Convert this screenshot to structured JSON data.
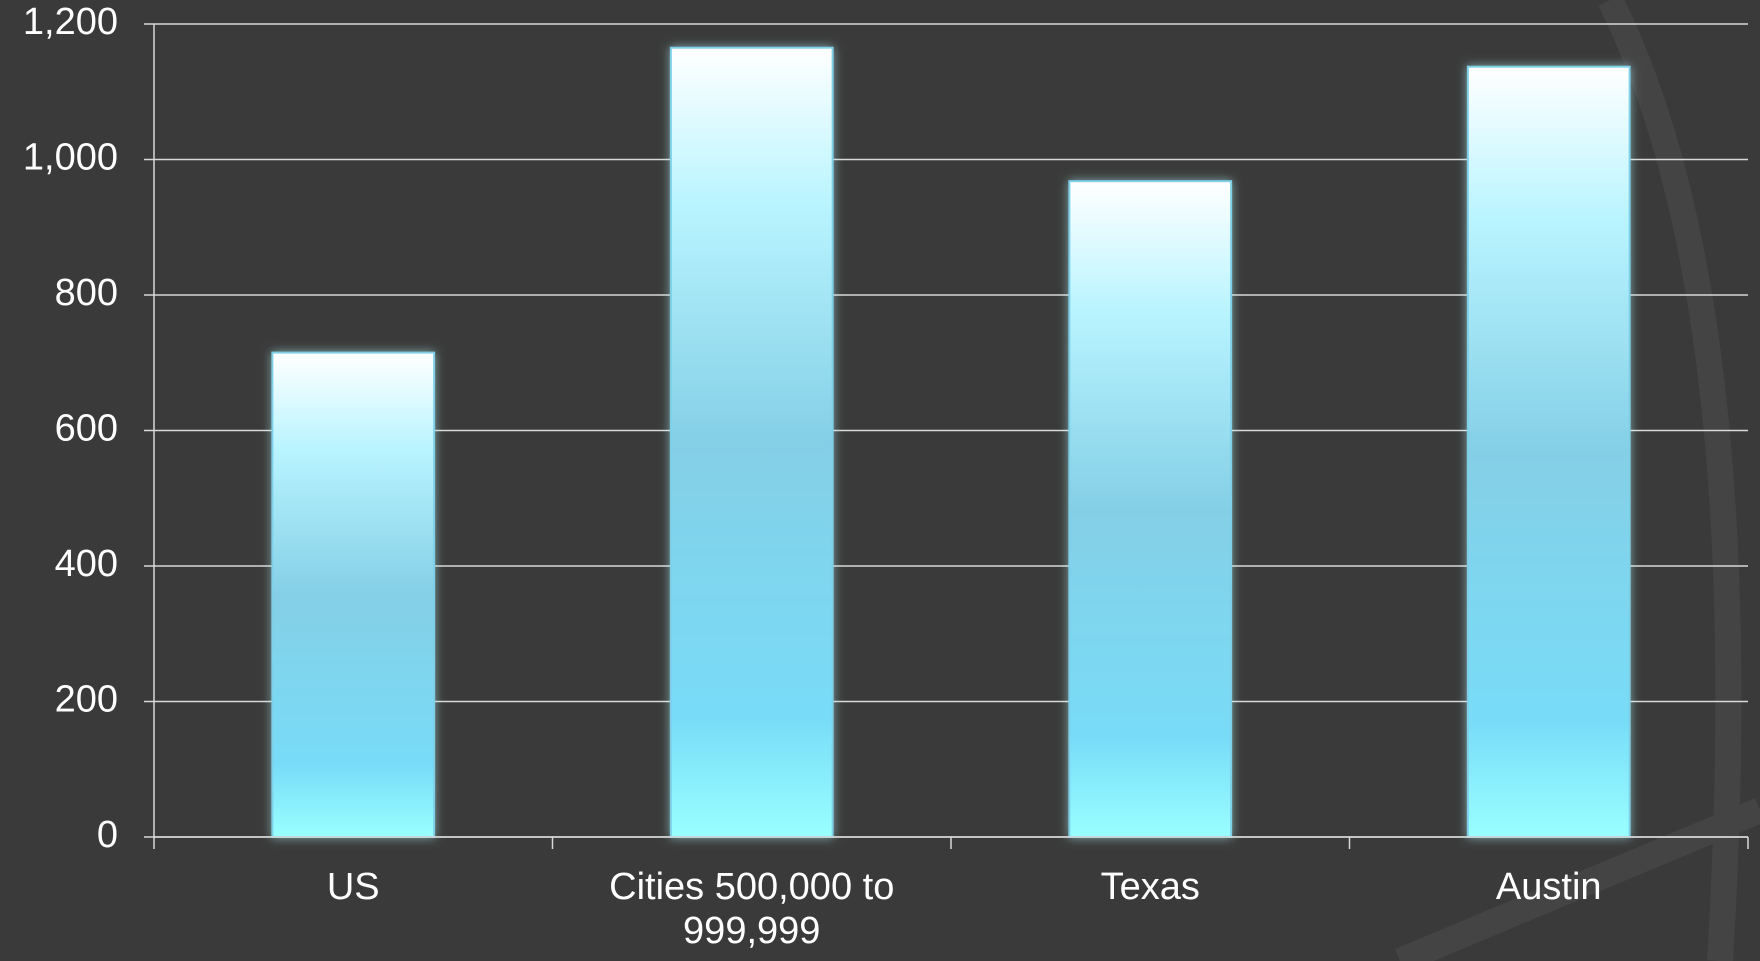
{
  "chart_data": {
    "type": "bar",
    "categories": [
      "US",
      "Cities 500,000 to 999,999",
      "Texas",
      "Austin"
    ],
    "values": [
      715,
      1165,
      968,
      1137
    ],
    "color": "#7ecfe8",
    "ylim": [
      0,
      1200
    ],
    "yticks": [
      0,
      200,
      400,
      600,
      800,
      {
        "value": 1000,
        "label": "1,000"
      },
      {
        "value": 1200,
        "label": "1,200"
      }
    ],
    "grid": true
  }
}
